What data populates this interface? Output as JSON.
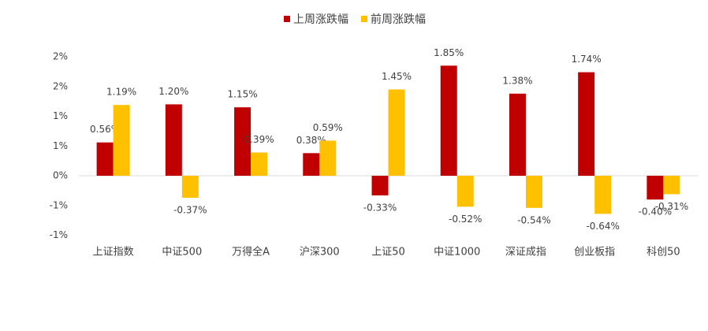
{
  "chart_data": {
    "type": "bar",
    "categories": [
      "上证指数",
      "中证500",
      "万得全A",
      "沪深300",
      "上证50",
      "中证1000",
      "深证成指",
      "创业板指",
      "科创50"
    ],
    "series": [
      {
        "name": "上周涨跌幅",
        "color": "#c00000",
        "values": [
          0.56,
          1.2,
          1.15,
          0.38,
          -0.33,
          1.85,
          1.38,
          1.74,
          -0.4
        ],
        "value_labels": [
          "0.56%",
          "1.20%",
          "1.15%",
          "0.38%",
          "-0.33%",
          "1.85%",
          "1.38%",
          "1.74%",
          "-0.40%"
        ]
      },
      {
        "name": "前周涨跌幅",
        "color": "#ffc000",
        "values": [
          1.19,
          -0.37,
          0.39,
          0.59,
          1.45,
          -0.52,
          -0.54,
          -0.64,
          -0.31
        ],
        "value_labels": [
          "1.19%",
          "-0.37%",
          "0.39%",
          "0.59%",
          "1.45%",
          "-0.52%",
          "-0.54%",
          "-0.64%",
          "-0.31%"
        ]
      }
    ],
    "ylim": [
      -1,
      2
    ],
    "yticks": [
      {
        "value": 2,
        "label": "2%"
      },
      {
        "value": 1.5,
        "label": "2%"
      },
      {
        "value": 1,
        "label": "1%"
      },
      {
        "value": 0.5,
        "label": "1%"
      },
      {
        "value": 0,
        "label": "0%"
      },
      {
        "value": -0.5,
        "label": "-1%"
      },
      {
        "value": -1,
        "label": "-1%"
      }
    ],
    "legend": "top"
  }
}
